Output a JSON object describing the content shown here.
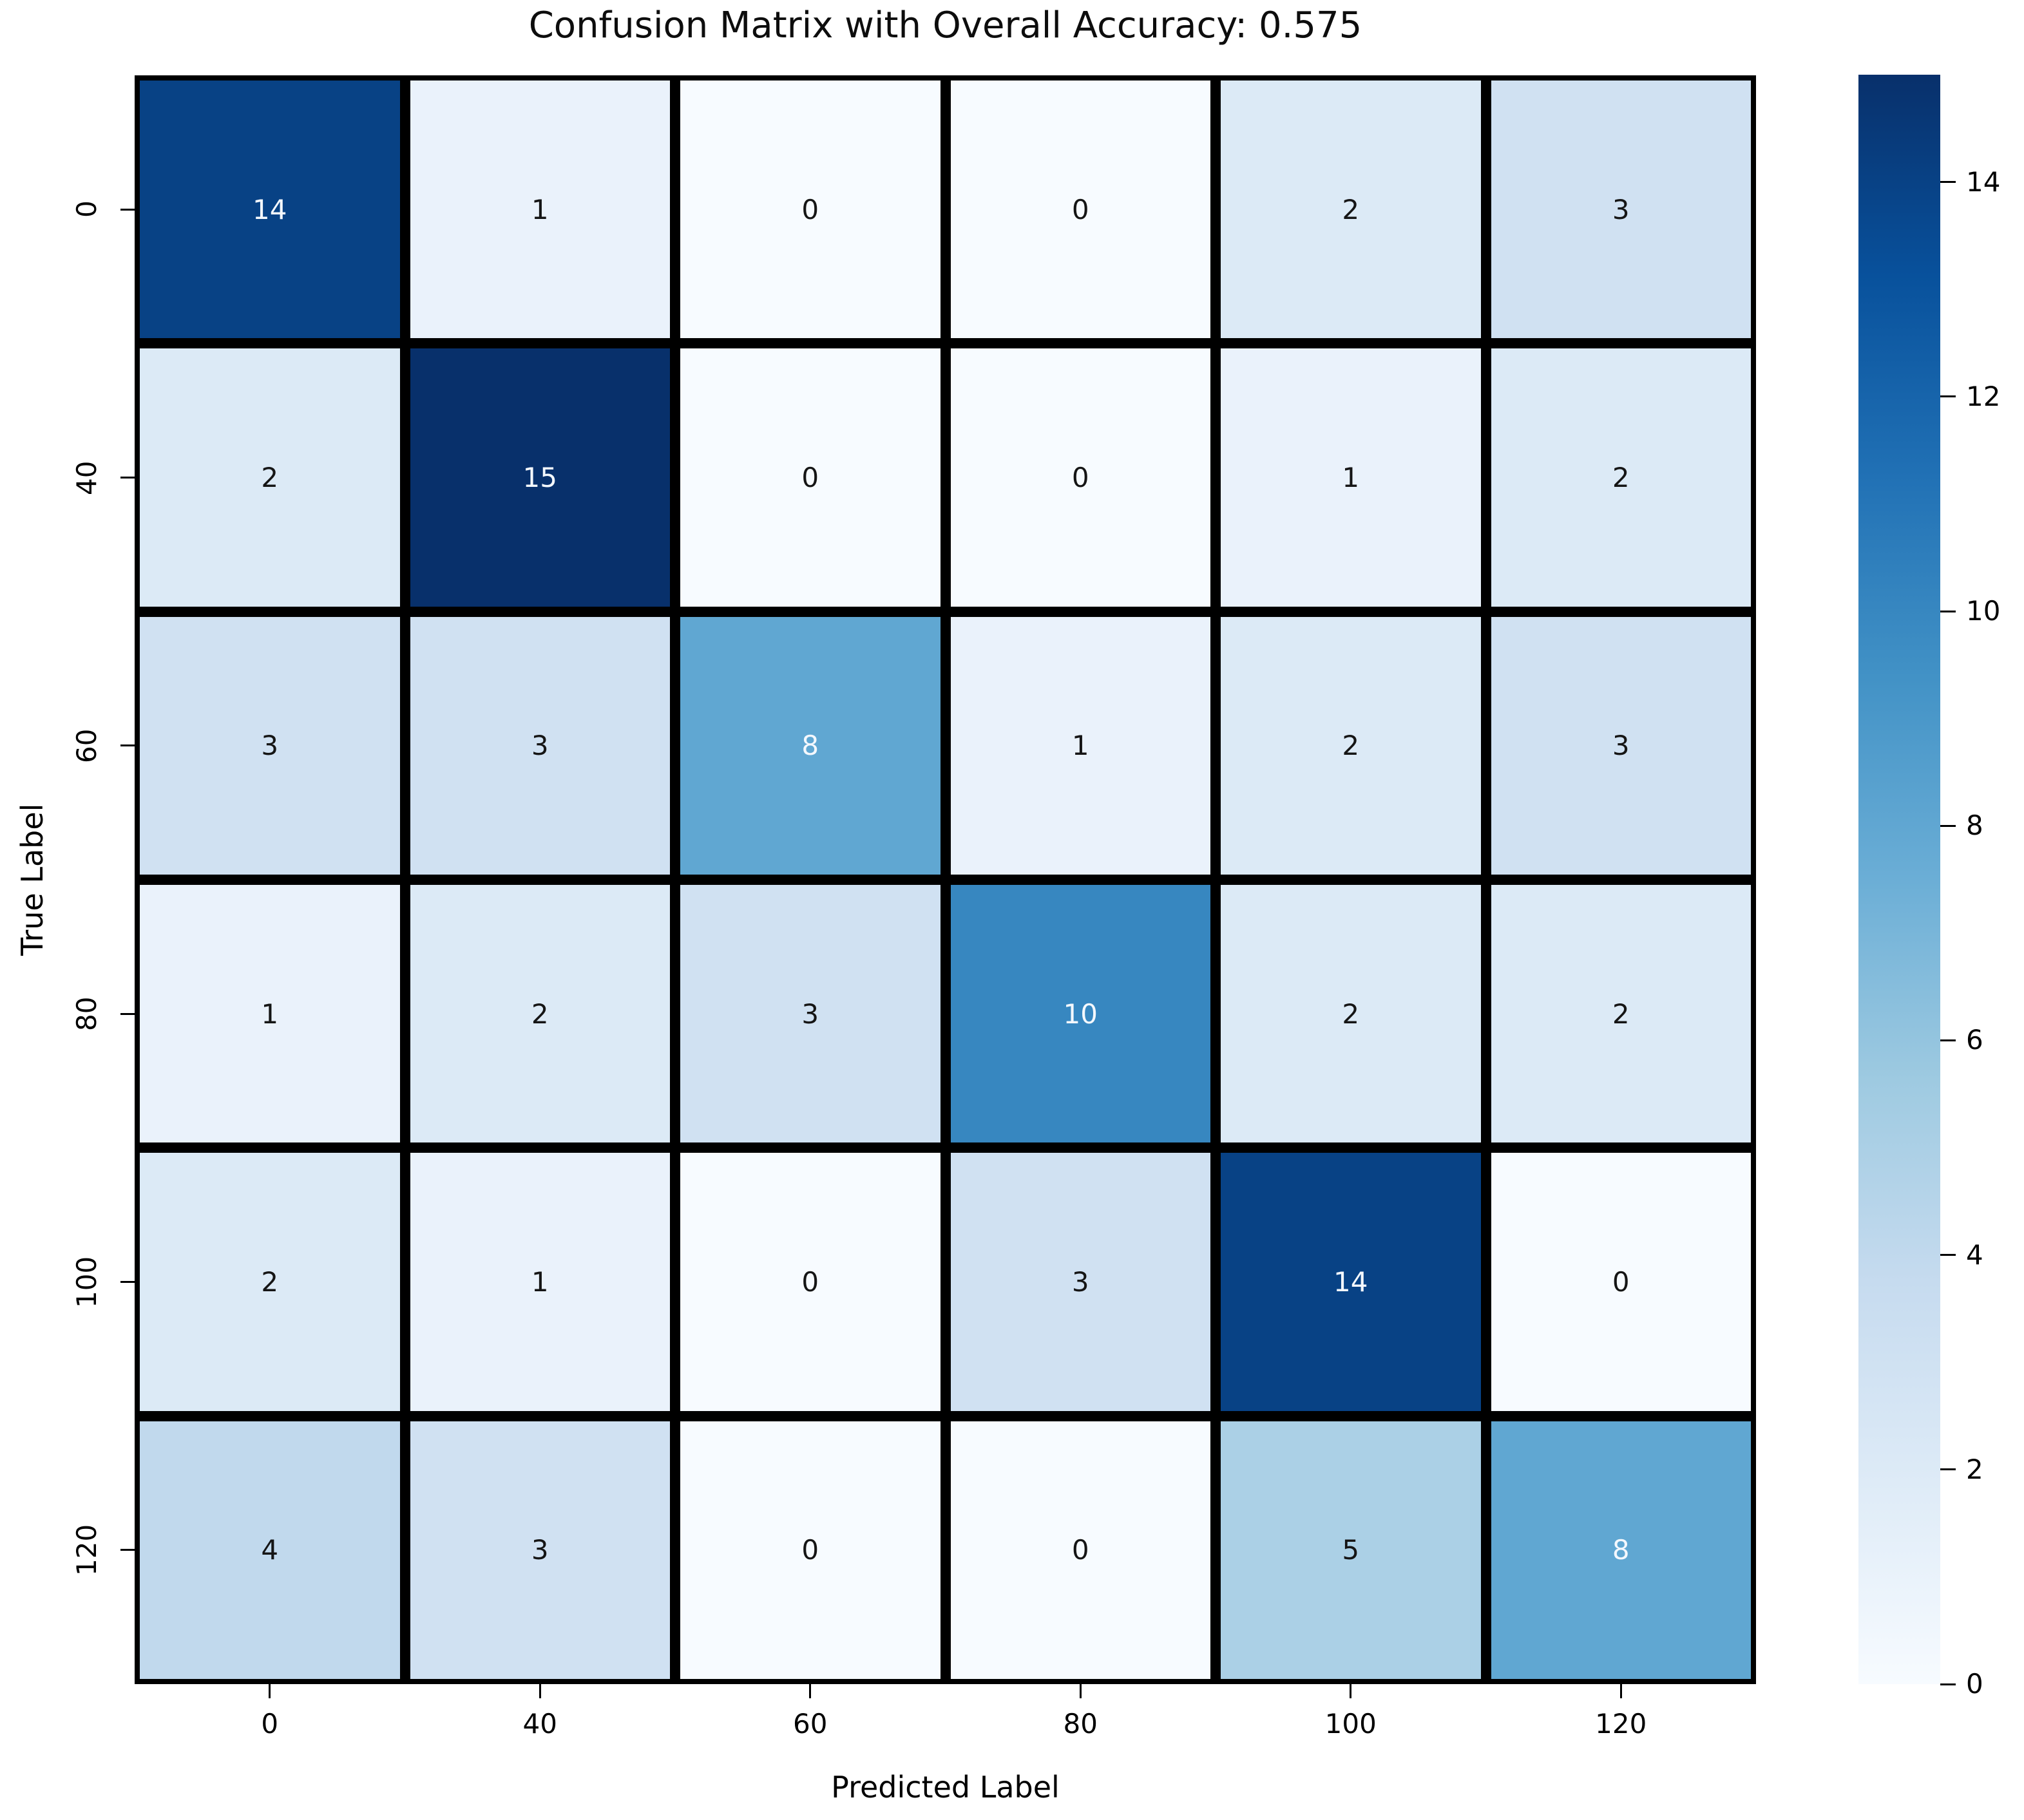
{
  "title": "Confusion Matrix with Overall Accuracy: 0.575",
  "xlabel": "Predicted Label",
  "ylabel": "True Label",
  "x_tick_labels": [
    "0",
    "40",
    "60",
    "80",
    "100",
    "120"
  ],
  "y_tick_labels": [
    "0",
    "40",
    "60",
    "80",
    "100",
    "120"
  ],
  "colorbar": {
    "min": 0,
    "max": 15,
    "tick_labels": [
      "0",
      "2",
      "4",
      "6",
      "8",
      "10",
      "12",
      "14"
    ],
    "gradient_stops": [
      "#f7fbff",
      "#deebf7",
      "#c6dbef",
      "#9ecae1",
      "#6baed6",
      "#4292c6",
      "#2171b5",
      "#08519c",
      "#08306b"
    ]
  },
  "chart_data": {
    "type": "heatmap",
    "title": "Confusion Matrix with Overall Accuracy: 0.575",
    "xlabel": "Predicted Label",
    "ylabel": "True Label",
    "x_categories": [
      "0",
      "40",
      "60",
      "80",
      "100",
      "120"
    ],
    "y_categories": [
      "0",
      "40",
      "60",
      "80",
      "100",
      "120"
    ],
    "values": [
      [
        14,
        1,
        0,
        0,
        2,
        3
      ],
      [
        2,
        15,
        0,
        0,
        1,
        2
      ],
      [
        3,
        3,
        8,
        1,
        2,
        3
      ],
      [
        1,
        2,
        3,
        10,
        2,
        2
      ],
      [
        2,
        1,
        0,
        3,
        14,
        0
      ],
      [
        4,
        3,
        0,
        0,
        5,
        8
      ]
    ],
    "overall_accuracy": 0.575,
    "colormap": "Blues",
    "vmin": 0,
    "vmax": 15,
    "annotations": true,
    "grid": false,
    "legend_position": "right-colorbar"
  },
  "style": {
    "value_colors": {
      "0": "#f7fbff",
      "1": "#eaf2fb",
      "2": "#dceaf6",
      "3": "#d0e1f2",
      "4": "#c1d9ed",
      "5": "#abd0e6",
      "8": "#60a7d2",
      "10": "#3787c0",
      "14": "#084285",
      "15": "#08306b"
    },
    "annot_dark": "#151515",
    "annot_light": "#f4f8fd",
    "white_text_min_value": 8,
    "line_color": "#000000",
    "background": "#ffffff"
  }
}
